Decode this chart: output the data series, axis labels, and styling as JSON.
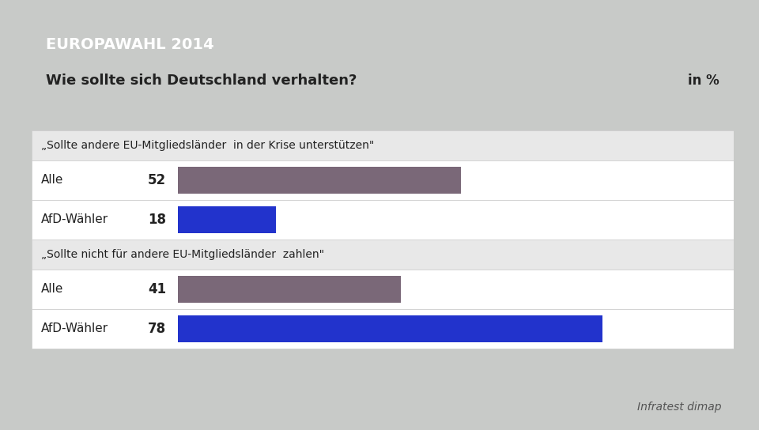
{
  "title_header": "EUROPAWAHL 2014",
  "title_header_bg": "#1a3f8c",
  "title_header_color": "#ffffff",
  "subtitle": "Wie sollte sich Deutschland verhalten?",
  "subtitle_right": "in %",
  "subtitle_bg": "#ffffff",
  "subtitle_color": "#222222",
  "background_color": "#c8cac8",
  "panel_bg": "#f0f0f0",
  "row_bg": "#ffffff",
  "section_header_bg": "#f0f0f0",
  "section1_label": "„Sollte andere EU-Mitgliedsländer  in der Krise unterstützen\"",
  "section2_label": "„Sollte nicht für andere EU-Mitgliedsländer  zahlen\"",
  "categories": [
    "Alle",
    "AfD-Wähler",
    "Alle",
    "AfD-Wähler"
  ],
  "values": [
    52,
    18,
    41,
    78
  ],
  "bar_color_alle": "#7a6878",
  "bar_color_afd": "#2233cc",
  "source": "Infratest dimap",
  "max_bar": 80
}
